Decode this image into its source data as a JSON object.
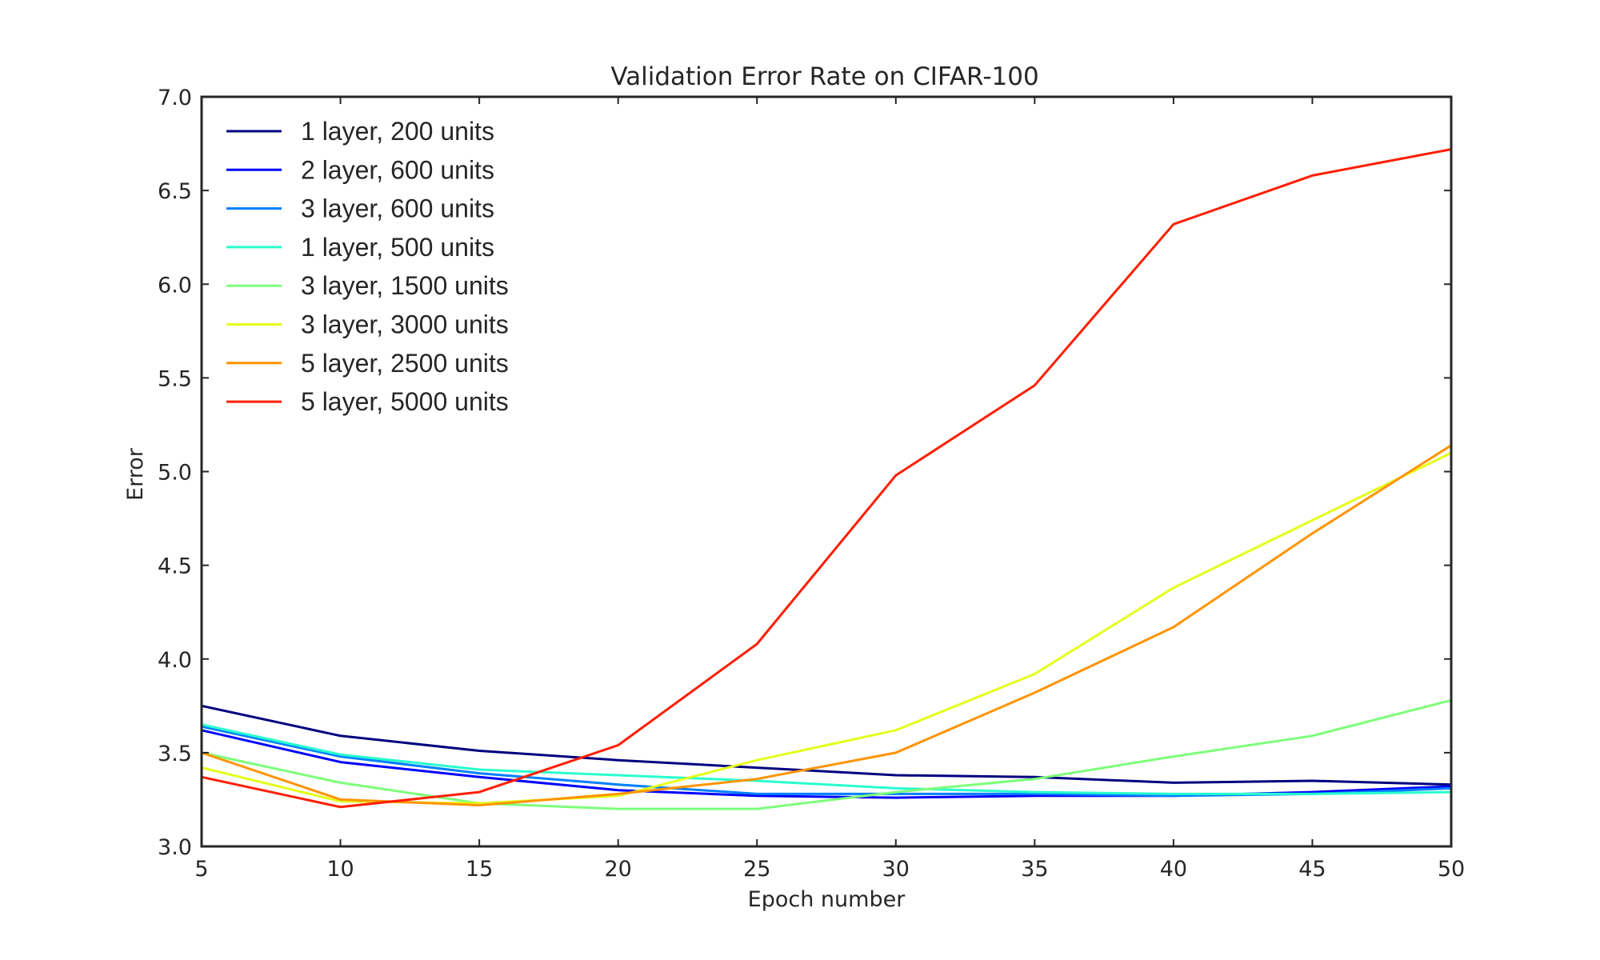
{
  "chart_data": {
    "type": "line",
    "title": "Validation Error Rate on CIFAR-100",
    "xlabel": "Epoch number",
    "ylabel": "Error",
    "xlim": [
      5,
      50
    ],
    "ylim": [
      3.0,
      7.0
    ],
    "xticks": [
      "5",
      "10",
      "15",
      "20",
      "25",
      "30",
      "35",
      "40",
      "45",
      "50"
    ],
    "yticks": [
      "3.0",
      "3.5",
      "4.0",
      "4.5",
      "5.0",
      "5.5",
      "6.0",
      "6.5",
      "7.0"
    ],
    "grid": false,
    "legend_position": "top-left",
    "x": [
      5,
      10,
      15,
      20,
      25,
      30,
      35,
      40,
      45,
      50
    ],
    "series": [
      {
        "name": "1 layer, 200 units",
        "color": "#00007f",
        "values": [
          3.75,
          3.59,
          3.51,
          3.46,
          3.42,
          3.38,
          3.37,
          3.34,
          3.35,
          3.33
        ]
      },
      {
        "name": "2 layer, 600 units",
        "color": "#0000ff",
        "values": [
          3.62,
          3.45,
          3.37,
          3.3,
          3.27,
          3.26,
          3.27,
          3.27,
          3.29,
          3.32
        ]
      },
      {
        "name": "3 layer, 600 units",
        "color": "#007fff",
        "values": [
          3.64,
          3.48,
          3.39,
          3.33,
          3.28,
          3.28,
          3.28,
          3.27,
          3.28,
          3.31
        ]
      },
      {
        "name": "1 layer, 500 units",
        "color": "#29ffce",
        "values": [
          3.65,
          3.49,
          3.41,
          3.38,
          3.35,
          3.31,
          3.29,
          3.28,
          3.28,
          3.29
        ]
      },
      {
        "name": "3 layer, 1500 units",
        "color": "#7dff7a",
        "values": [
          3.5,
          3.34,
          3.23,
          3.2,
          3.2,
          3.29,
          3.36,
          3.48,
          3.59,
          3.78
        ]
      },
      {
        "name": "3 layer, 3000 units",
        "color": "#e4ff1a",
        "values": [
          3.42,
          3.24,
          3.23,
          3.27,
          3.46,
          3.62,
          3.92,
          4.38,
          4.74,
          5.1
        ]
      },
      {
        "name": "5 layer, 2500 units",
        "color": "#ff9400",
        "values": [
          3.5,
          3.25,
          3.22,
          3.28,
          3.36,
          3.5,
          3.82,
          4.17,
          4.67,
          5.14
        ]
      },
      {
        "name": "5 layer, 5000 units",
        "color": "#ff1e00",
        "values": [
          3.37,
          3.21,
          3.29,
          3.54,
          4.08,
          4.98,
          5.46,
          6.32,
          6.58,
          6.72
        ]
      }
    ]
  }
}
